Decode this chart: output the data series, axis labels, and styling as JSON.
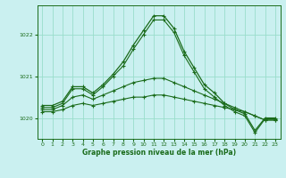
{
  "title": "Graphe pression niveau de la mer (hPa)",
  "background_color": "#caf0f0",
  "grid_color": "#99ddcc",
  "line_color": "#1a6b1a",
  "xlim": [
    -0.5,
    23.5
  ],
  "ylim": [
    1019.5,
    1022.7
  ],
  "yticks": [
    1020,
    1021,
    1022
  ],
  "xticks": [
    0,
    1,
    2,
    3,
    4,
    5,
    6,
    7,
    8,
    9,
    10,
    11,
    12,
    13,
    14,
    15,
    16,
    17,
    18,
    19,
    20,
    21,
    22,
    23
  ],
  "series": {
    "s1": [
      1020.3,
      1020.3,
      1020.4,
      1020.75,
      1020.75,
      1020.6,
      1020.8,
      1021.05,
      1021.35,
      1021.75,
      1022.1,
      1022.45,
      1022.45,
      1022.15,
      1021.6,
      1021.2,
      1020.8,
      1020.6,
      1020.35,
      1020.2,
      1020.1,
      1019.7,
      1020.0,
      1020.0
    ],
    "s2": [
      1020.25,
      1020.25,
      1020.35,
      1020.7,
      1020.7,
      1020.55,
      1020.75,
      1021.0,
      1021.25,
      1021.65,
      1022.0,
      1022.35,
      1022.35,
      1022.05,
      1021.5,
      1021.1,
      1020.7,
      1020.5,
      1020.3,
      1020.15,
      1020.05,
      1019.65,
      1019.98,
      1019.98
    ],
    "s3": [
      1020.2,
      1020.2,
      1020.3,
      1020.5,
      1020.55,
      1020.45,
      1020.55,
      1020.65,
      1020.75,
      1020.85,
      1020.9,
      1020.95,
      1020.95,
      1020.85,
      1020.75,
      1020.65,
      1020.55,
      1020.45,
      1020.35,
      1020.25,
      1020.15,
      1020.05,
      1019.95,
      1019.95
    ],
    "s4": [
      1020.15,
      1020.15,
      1020.2,
      1020.3,
      1020.35,
      1020.3,
      1020.35,
      1020.4,
      1020.45,
      1020.5,
      1020.5,
      1020.55,
      1020.55,
      1020.5,
      1020.45,
      1020.4,
      1020.35,
      1020.3,
      1020.25,
      1020.2,
      1020.15,
      1020.05,
      1019.95,
      1019.95
    ]
  }
}
